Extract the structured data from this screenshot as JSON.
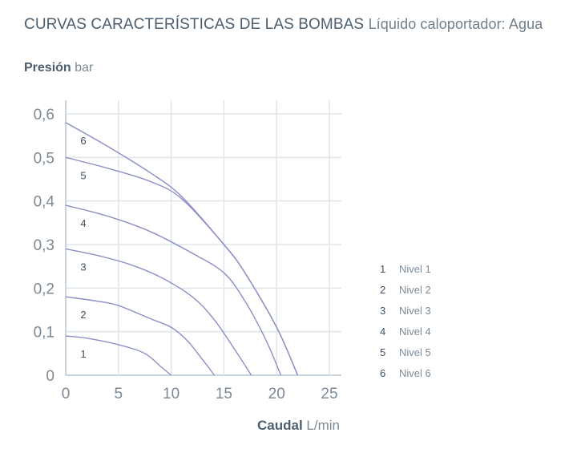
{
  "header": {
    "title_strong": "CURVAS CARACTERÍSTICAS DE LAS BOMBAS",
    "title_light": "Líquido caloportador: Agua"
  },
  "y_axis": {
    "label_strong": "Presión",
    "label_unit": "bar"
  },
  "x_axis": {
    "label_strong": "Caudal",
    "label_unit": "L/min"
  },
  "legend": {
    "items": [
      {
        "num": "1",
        "label": "Nivel 1"
      },
      {
        "num": "2",
        "label": "Nivel 2"
      },
      {
        "num": "3",
        "label": "Nivel 3"
      },
      {
        "num": "4",
        "label": "Nivel 4"
      },
      {
        "num": "5",
        "label": "Nivel 5"
      },
      {
        "num": "6",
        "label": "Nivel 6"
      }
    ]
  },
  "colors": {
    "curve": "#8a90c4",
    "grid": "#dfe5ea",
    "axis": "#c9d3db",
    "text": "#4d5f6e"
  },
  "chart_data": {
    "type": "line",
    "title": "CURVAS CARACTERÍSTICAS DE LAS BOMBAS",
    "subtitle": "Líquido caloportador: Agua",
    "xlabel": "Caudal L/min",
    "ylabel": "Presión bar",
    "xlim": [
      0,
      25
    ],
    "ylim": [
      0,
      0.6
    ],
    "x_ticks": [
      "0",
      "5",
      "10",
      "15",
      "20",
      "25"
    ],
    "y_ticks": [
      "0",
      "0,1",
      "0,2",
      "0,3",
      "0,4",
      "0,5",
      "0,6"
    ],
    "grid": true,
    "legend_position": "right",
    "series": [
      {
        "name": "Nivel 1",
        "label": "1",
        "x": [
          0,
          2,
          5,
          7.5,
          9,
          10
        ],
        "y": [
          0.09,
          0.085,
          0.07,
          0.05,
          0.02,
          0
        ]
      },
      {
        "name": "Nivel 2",
        "label": "2",
        "x": [
          0,
          3,
          5,
          8,
          10,
          11.5,
          13,
          14.1
        ],
        "y": [
          0.18,
          0.17,
          0.16,
          0.13,
          0.11,
          0.08,
          0.035,
          0
        ]
      },
      {
        "name": "Nivel 3",
        "label": "3",
        "x": [
          0,
          3,
          6,
          9,
          12,
          14,
          16,
          17.6
        ],
        "y": [
          0.29,
          0.275,
          0.255,
          0.225,
          0.18,
          0.13,
          0.06,
          0
        ]
      },
      {
        "name": "Nivel 4",
        "label": "4",
        "x": [
          0,
          4,
          8,
          12,
          15,
          17,
          19,
          20.4
        ],
        "y": [
          0.39,
          0.365,
          0.33,
          0.28,
          0.235,
          0.17,
          0.08,
          0
        ]
      },
      {
        "name": "Nivel 5",
        "label": "5",
        "x": [
          0,
          4,
          8,
          11,
          15,
          17,
          20,
          22
        ],
        "y": [
          0.5,
          0.475,
          0.445,
          0.405,
          0.3,
          0.235,
          0.11,
          0
        ]
      },
      {
        "name": "Nivel 6",
        "label": "6",
        "x": [
          0,
          4,
          8,
          11,
          15,
          17,
          20,
          22
        ],
        "y": [
          0.58,
          0.525,
          0.465,
          0.41,
          0.3,
          0.235,
          0.11,
          0
        ]
      }
    ]
  }
}
